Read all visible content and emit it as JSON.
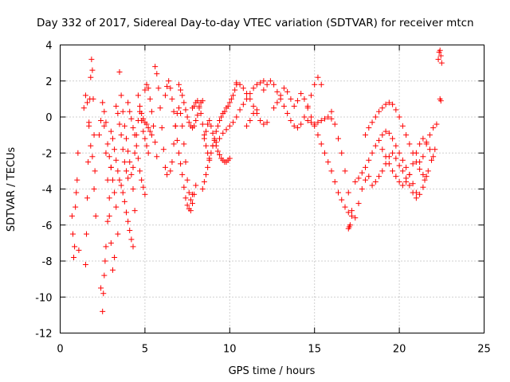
{
  "chart_data": {
    "type": "scatter",
    "title": "Day 332 of 2017, Sidereal Day-to-day VTEC variation (SDTVAR) for receiver mtcn",
    "xlabel": "GPS time / hours",
    "ylabel": "SDTVAR / TECUs",
    "xlim": [
      0,
      25
    ],
    "ylim": [
      -12,
      4
    ],
    "xticks": [
      0,
      5,
      10,
      15,
      20,
      25
    ],
    "yticks": [
      -12,
      -10,
      -8,
      -6,
      -4,
      -2,
      0,
      2,
      4
    ],
    "grid": true,
    "marker": "+",
    "color": "#ff0000",
    "series": [
      {
        "name": "t1",
        "x": [
          0.7,
          0.75,
          0.8,
          0.85,
          0.9,
          0.95,
          1.0,
          1.05,
          1.1
        ],
        "y": [
          -5.5,
          -6.5,
          -7.8,
          -7.2,
          -5.0,
          -4.2,
          -3.5,
          -2.0,
          -7.4
        ]
      },
      {
        "name": "t2",
        "x": [
          1.5,
          1.55,
          1.6,
          1.65,
          1.7,
          1.75,
          1.8,
          1.85,
          1.9,
          1.95,
          2.0,
          2.05,
          2.1
        ],
        "y": [
          -8.2,
          -6.5,
          -4.5,
          -2.5,
          -0.5,
          1.0,
          2.2,
          3.2,
          2.6,
          1.0,
          -1.0,
          -3.0,
          -5.5
        ]
      },
      {
        "name": "t3",
        "x": [
          1.4,
          1.5,
          1.6,
          1.7,
          1.8,
          1.9,
          2.0
        ],
        "y": [
          0.5,
          1.2,
          0.8,
          -0.3,
          -1.6,
          -2.2,
          -4.0
        ]
      },
      {
        "name": "t4",
        "x": [
          2.4,
          2.5,
          2.55,
          2.6,
          2.65,
          2.7,
          2.8,
          2.9,
          3.0
        ],
        "y": [
          -9.5,
          -10.8,
          -9.8,
          -8.8,
          -8.0,
          -7.2,
          -5.8,
          -4.5,
          -2.8
        ]
      },
      {
        "name": "t5",
        "x": [
          2.3,
          2.4,
          2.5,
          2.6,
          2.7,
          2.8,
          2.9,
          3.0,
          3.1,
          3.2
        ],
        "y": [
          -1.0,
          -0.2,
          0.8,
          -0.5,
          -2.0,
          -3.5,
          -5.5,
          -7.0,
          -8.5,
          -7.8
        ]
      },
      {
        "name": "t6",
        "x": [
          2.6,
          2.7,
          2.8,
          2.9,
          3.0,
          3.1,
          3.2,
          3.3,
          3.4
        ],
        "y": [
          0.3,
          -0.3,
          -1.5,
          -2.2,
          -2.8,
          -3.5,
          -4.2,
          -5.0,
          -6.5
        ]
      },
      {
        "name": "t7",
        "x": [
          3.0,
          3.1,
          3.2,
          3.3,
          3.4,
          3.5,
          3.6,
          3.7,
          3.8,
          3.9,
          4.0,
          4.1,
          4.2,
          4.3
        ],
        "y": [
          -0.8,
          -1.2,
          -1.8,
          -2.4,
          -3.0,
          -3.5,
          -3.8,
          -4.2,
          -4.7,
          -5.3,
          -5.8,
          -6.3,
          -6.8,
          -7.2
        ]
      },
      {
        "name": "t8",
        "x": [
          3.3,
          3.4,
          3.5,
          3.6,
          3.7,
          3.8,
          3.9,
          4.0
        ],
        "y": [
          0.6,
          0.2,
          -0.4,
          -1.0,
          -1.8,
          -2.5,
          -3.0,
          -3.4
        ]
      },
      {
        "name": "t9",
        "x": [
          3.5,
          3.6,
          3.7,
          3.8,
          3.9,
          4.0,
          4.1,
          4.2,
          4.3,
          4.4
        ],
        "y": [
          2.5,
          1.2,
          0.3,
          -0.5,
          -1.2,
          -1.9,
          -2.5,
          -3.2,
          -4.0,
          -5.2
        ]
      },
      {
        "name": "t10",
        "x": [
          4.0,
          4.1,
          4.2,
          4.3,
          4.4,
          4.5,
          4.6,
          4.7,
          4.8,
          4.9,
          5.0
        ],
        "y": [
          0.8,
          0.3,
          -0.1,
          -0.6,
          -1.0,
          -1.6,
          -2.3,
          -3.0,
          -3.5,
          -3.9,
          -4.3
        ]
      },
      {
        "name": "t11",
        "x": [
          4.3,
          4.4,
          4.5,
          4.6,
          4.7,
          4.8,
          4.9,
          5.0,
          5.1,
          5.2
        ],
        "y": [
          -2.8,
          -2.0,
          -1.0,
          -0.2,
          0.3,
          -0.2,
          -0.8,
          -1.2,
          -1.6,
          -2.0
        ]
      },
      {
        "name": "t12",
        "x": [
          4.6,
          4.7,
          4.8,
          4.9,
          5.0,
          5.1,
          5.2,
          5.3,
          5.4
        ],
        "y": [
          1.2,
          0.6,
          0.2,
          -0.1,
          -0.3,
          -0.4,
          -0.6,
          -0.8,
          -1.0
        ]
      },
      {
        "name": "t13",
        "x": [
          5.0,
          5.1,
          5.2,
          5.3,
          5.4,
          5.5,
          5.6,
          5.7
        ],
        "y": [
          1.5,
          1.8,
          1.6,
          1.0,
          0.3,
          -0.5,
          -1.4,
          -2.2
        ]
      },
      {
        "name": "t14",
        "x": [
          5.6,
          5.7,
          5.8,
          5.9,
          6.0,
          6.1,
          6.2,
          6.3
        ],
        "y": [
          2.8,
          2.4,
          1.6,
          0.5,
          -0.6,
          -1.8,
          -2.8,
          -3.2
        ]
      },
      {
        "name": "t15",
        "x": [
          6.2,
          6.3,
          6.4,
          6.5,
          6.6,
          6.7,
          6.8,
          6.9,
          7.0,
          7.1,
          7.2,
          7.3,
          7.4,
          7.5,
          7.6,
          7.7,
          7.8,
          7.9,
          8.0
        ],
        "y": [
          1.2,
          1.7,
          2.0,
          1.6,
          1.0,
          0.3,
          -0.5,
          -1.3,
          -2.0,
          -2.6,
          -3.2,
          -3.9,
          -4.5,
          -4.9,
          -5.1,
          -5.2,
          -4.8,
          -4.3,
          -3.8
        ]
      },
      {
        "name": "t16",
        "x": [
          6.5,
          6.6,
          6.7,
          6.8,
          6.9,
          7.0,
          7.1,
          7.2,
          7.3,
          7.4,
          7.5,
          7.6,
          7.7,
          7.8
        ],
        "y": [
          -3.0,
          -2.5,
          -1.5,
          -0.5,
          0.2,
          0.5,
          0.2,
          -0.5,
          -1.5,
          -2.5,
          -3.5,
          -4.2,
          -4.6,
          -4.3
        ]
      },
      {
        "name": "t17",
        "x": [
          7.0,
          7.1,
          7.2,
          7.3,
          7.4,
          7.5,
          7.6,
          7.7,
          7.8,
          7.9,
          8.0,
          8.1,
          8.2,
          8.3,
          8.4
        ],
        "y": [
          1.8,
          1.5,
          1.2,
          0.8,
          0.4,
          0.0,
          -0.3,
          -0.5,
          -0.6,
          -0.5,
          -0.2,
          0.1,
          0.5,
          0.8,
          0.9
        ]
      },
      {
        "name": "t18",
        "x": [
          7.8,
          7.9,
          8.0,
          8.1,
          8.2,
          8.3,
          8.4,
          8.5,
          8.6,
          8.7,
          8.8
        ],
        "y": [
          0.5,
          0.6,
          0.8,
          0.9,
          0.6,
          0.2,
          -0.4,
          -1.0,
          -1.6,
          -2.0,
          -2.3
        ]
      },
      {
        "name": "t19",
        "x": [
          8.4,
          8.5,
          8.6,
          8.7,
          8.8,
          8.9,
          9.0,
          9.1,
          9.2,
          9.3,
          9.4,
          9.5,
          9.6,
          9.7,
          9.8,
          9.9,
          10.0,
          10.1,
          10.2,
          10.3,
          10.4
        ],
        "y": [
          -4.0,
          -3.6,
          -3.2,
          -2.8,
          -2.4,
          -2.0,
          -1.6,
          -1.2,
          -0.8,
          -0.5,
          -0.2,
          0.0,
          0.2,
          0.3,
          0.5,
          0.6,
          0.8,
          1.0,
          1.2,
          1.5,
          1.8
        ]
      },
      {
        "name": "t20",
        "x": [
          8.5,
          8.6,
          8.7,
          8.8,
          8.9,
          9.0,
          9.1,
          9.2,
          9.3,
          9.4,
          9.5,
          9.6,
          9.7,
          9.8,
          9.9,
          10.0
        ],
        "y": [
          -1.2,
          -0.8,
          -0.4,
          -0.2,
          -0.5,
          -0.9,
          -1.3,
          -1.6,
          -1.9,
          -2.1,
          -2.3,
          -2.4,
          -2.5,
          -2.5,
          -2.4,
          -2.3
        ]
      },
      {
        "name": "t21",
        "x": [
          9.0,
          9.2,
          9.4,
          9.6,
          9.8,
          10.0,
          10.2,
          10.4,
          10.6,
          10.8,
          11.0,
          11.2,
          11.4,
          11.6,
          11.8,
          12.0
        ],
        "y": [
          -1.6,
          -1.4,
          -1.2,
          -0.9,
          -0.7,
          -0.5,
          -0.3,
          0.0,
          0.4,
          0.7,
          1.0,
          1.3,
          1.6,
          1.8,
          1.9,
          2.0
        ]
      },
      {
        "name": "t22",
        "x": [
          10.4,
          10.6,
          10.8,
          11.0,
          11.2,
          11.4,
          11.6,
          11.8,
          12.0,
          12.2
        ],
        "y": [
          1.9,
          1.8,
          1.6,
          1.3,
          1.0,
          0.6,
          0.2,
          -0.2,
          -0.4,
          -0.3
        ]
      },
      {
        "name": "t23",
        "x": [
          11.0,
          11.2,
          11.4,
          11.6
        ],
        "y": [
          -0.5,
          -0.2,
          0.2,
          0.4
        ]
      },
      {
        "name": "t24",
        "x": [
          12.0,
          12.2,
          12.4,
          12.6,
          12.8,
          13.0,
          13.2,
          13.4,
          13.6,
          13.8,
          14.0,
          14.2,
          14.4,
          14.6,
          14.8,
          15.0,
          15.2,
          15.4
        ],
        "y": [
          1.5,
          1.8,
          2.0,
          1.8,
          1.4,
          1.0,
          0.6,
          0.2,
          -0.2,
          -0.5,
          -0.6,
          -0.4,
          0.0,
          0.6,
          1.2,
          1.8,
          2.2,
          1.8
        ]
      },
      {
        "name": "t25",
        "x": [
          12.6,
          12.8,
          13.0,
          13.2,
          13.4,
          13.6,
          13.8,
          14.0,
          14.2,
          14.4,
          14.6,
          14.8,
          15.0,
          15.2,
          15.4,
          15.6,
          15.8,
          16.0,
          16.2,
          16.4,
          16.6,
          16.8,
          17.0,
          17.2
        ],
        "y": [
          0.5,
          0.8,
          1.2,
          1.6,
          1.4,
          1.0,
          0.6,
          0.9,
          1.3,
          1.0,
          0.5,
          0.0,
          -0.5,
          -1.0,
          -1.5,
          -2.0,
          -2.5,
          -3.0,
          -3.6,
          -4.2,
          -4.6,
          -5.0,
          -5.3,
          -5.5
        ]
      },
      {
        "name": "t26",
        "x": [
          14.6,
          14.8,
          15.0,
          15.2,
          15.4,
          15.6,
          15.8,
          16.0
        ],
        "y": [
          -0.2,
          -0.3,
          -0.4,
          -0.3,
          -0.2,
          -0.1,
          0.0,
          -0.1
        ]
      },
      {
        "name": "t27",
        "x": [
          16.0,
          16.2,
          16.4,
          16.6,
          16.8,
          17.0,
          17.2,
          17.4,
          17.6,
          17.8,
          18.0,
          18.2
        ],
        "y": [
          0.3,
          -0.4,
          -1.2,
          -2.0,
          -3.0,
          -4.2,
          -5.2,
          -5.6,
          -4.8,
          -4.0,
          -3.5,
          -3.3
        ]
      },
      {
        "name": "t28",
        "x": [
          17.0,
          17.05,
          17.1
        ],
        "y": [
          -6.2,
          -6.1,
          -6.0
        ]
      },
      {
        "name": "t29",
        "x": [
          17.4,
          17.6,
          17.8,
          18.0,
          18.2,
          18.4,
          18.6,
          18.8,
          19.0,
          19.2,
          19.4,
          19.6,
          19.8,
          20.0,
          20.2,
          20.4,
          20.6,
          20.8,
          21.0
        ],
        "y": [
          -3.6,
          -3.4,
          -3.1,
          -2.8,
          -2.4,
          -2.0,
          -1.6,
          -1.3,
          -1.0,
          -0.8,
          -0.9,
          -1.2,
          -1.6,
          -2.0,
          -2.4,
          -2.8,
          -3.2,
          -3.7,
          -4.2
        ]
      },
      {
        "name": "t30",
        "x": [
          18.0,
          18.2,
          18.4,
          18.6,
          18.8,
          19.0,
          19.2,
          19.4,
          19.6,
          19.8,
          20.0,
          20.2,
          20.4,
          20.6,
          20.8,
          21.0,
          21.2,
          21.4,
          21.6
        ],
        "y": [
          -1.0,
          -0.6,
          -0.3,
          0.0,
          0.3,
          0.5,
          0.7,
          0.8,
          0.7,
          0.4,
          0.0,
          -0.5,
          -1.0,
          -1.5,
          -2.0,
          -2.5,
          -2.9,
          -3.2,
          -3.3
        ]
      },
      {
        "name": "t31",
        "x": [
          18.4,
          18.6,
          18.8,
          19.0,
          19.2,
          19.4,
          19.6,
          19.8,
          20.0,
          20.2,
          20.4,
          20.6,
          20.8,
          21.0,
          21.2,
          21.4
        ],
        "y": [
          -3.8,
          -3.6,
          -3.3,
          -3.0,
          -2.6,
          -2.2,
          -2.0,
          -2.3,
          -2.7,
          -3.0,
          -3.4,
          -3.8,
          -4.2,
          -4.5,
          -4.3,
          -3.9
        ]
      },
      {
        "name": "t32",
        "x": [
          19.0,
          19.2,
          19.4,
          19.6,
          19.8,
          20.0,
          20.2,
          20.4,
          20.6,
          20.8,
          21.0,
          21.2,
          21.4,
          21.6,
          21.8,
          22.0
        ],
        "y": [
          -1.8,
          -2.2,
          -2.6,
          -3.0,
          -3.3,
          -3.6,
          -3.8,
          -3.6,
          -3.2,
          -2.6,
          -2.0,
          -1.5,
          -1.2,
          -1.4,
          -1.8,
          -2.2
        ]
      },
      {
        "name": "t33",
        "x": [
          21.2,
          21.4,
          21.6,
          21.8,
          22.0,
          22.2
        ],
        "y": [
          -2.5,
          -2.2,
          -1.5,
          -1.0,
          -0.6,
          -0.4
        ]
      },
      {
        "name": "t34",
        "x": [
          21.5,
          21.7,
          21.9,
          22.1
        ],
        "y": [
          -3.5,
          -3.0,
          -2.4,
          -1.8
        ]
      },
      {
        "name": "t35",
        "x": [
          22.3,
          22.35,
          22.4,
          22.45,
          22.5,
          22.4,
          22.45
        ],
        "y": [
          3.2,
          3.6,
          3.7,
          3.4,
          3.0,
          1.0,
          0.9
        ]
      }
    ]
  }
}
